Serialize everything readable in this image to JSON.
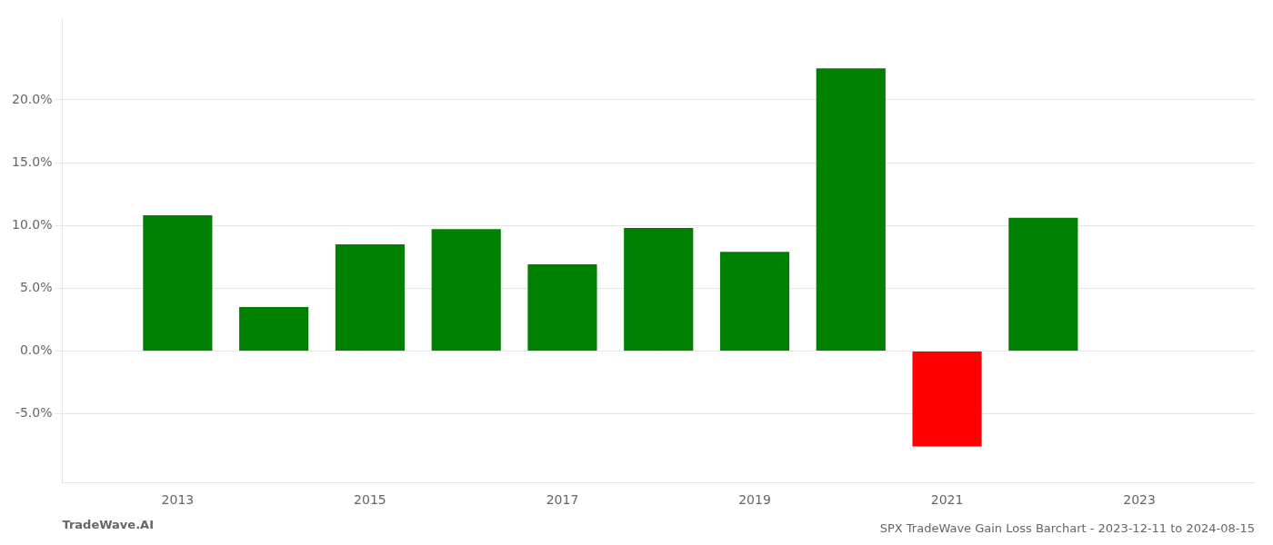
{
  "chart_data": {
    "type": "bar",
    "title": "SPX TradeWave Gain Loss Barchart - 2023-12-11 to 2024-08-15",
    "annotations": [
      "TradeWave.AI"
    ],
    "x": [
      2013,
      2014,
      2015,
      2016,
      2017,
      2018,
      2019,
      2020,
      2021,
      2022
    ],
    "values": [
      0.108,
      0.035,
      0.085,
      0.097,
      0.069,
      0.098,
      0.079,
      0.225,
      -0.076,
      0.106
    ],
    "colors": [
      "#008000",
      "#008000",
      "#008000",
      "#008000",
      "#008000",
      "#008000",
      "#008000",
      "#008000",
      "#ff0000",
      "#008000"
    ],
    "xlim": [
      2011.8,
      2024.2
    ],
    "xticks": [
      2013,
      2015,
      2017,
      2019,
      2021,
      2023
    ],
    "ylim": [
      -0.105,
      0.265
    ],
    "yticks": [
      {
        "value": -0.05,
        "label": "-5.0%"
      },
      {
        "value": 0.0,
        "label": "0.0%"
      },
      {
        "value": 0.05,
        "label": "5.0%"
      },
      {
        "value": 0.1,
        "label": "10.0%"
      },
      {
        "value": 0.15,
        "label": "15.0%"
      },
      {
        "value": 0.2,
        "label": "20.0%"
      }
    ],
    "grid": "y"
  }
}
